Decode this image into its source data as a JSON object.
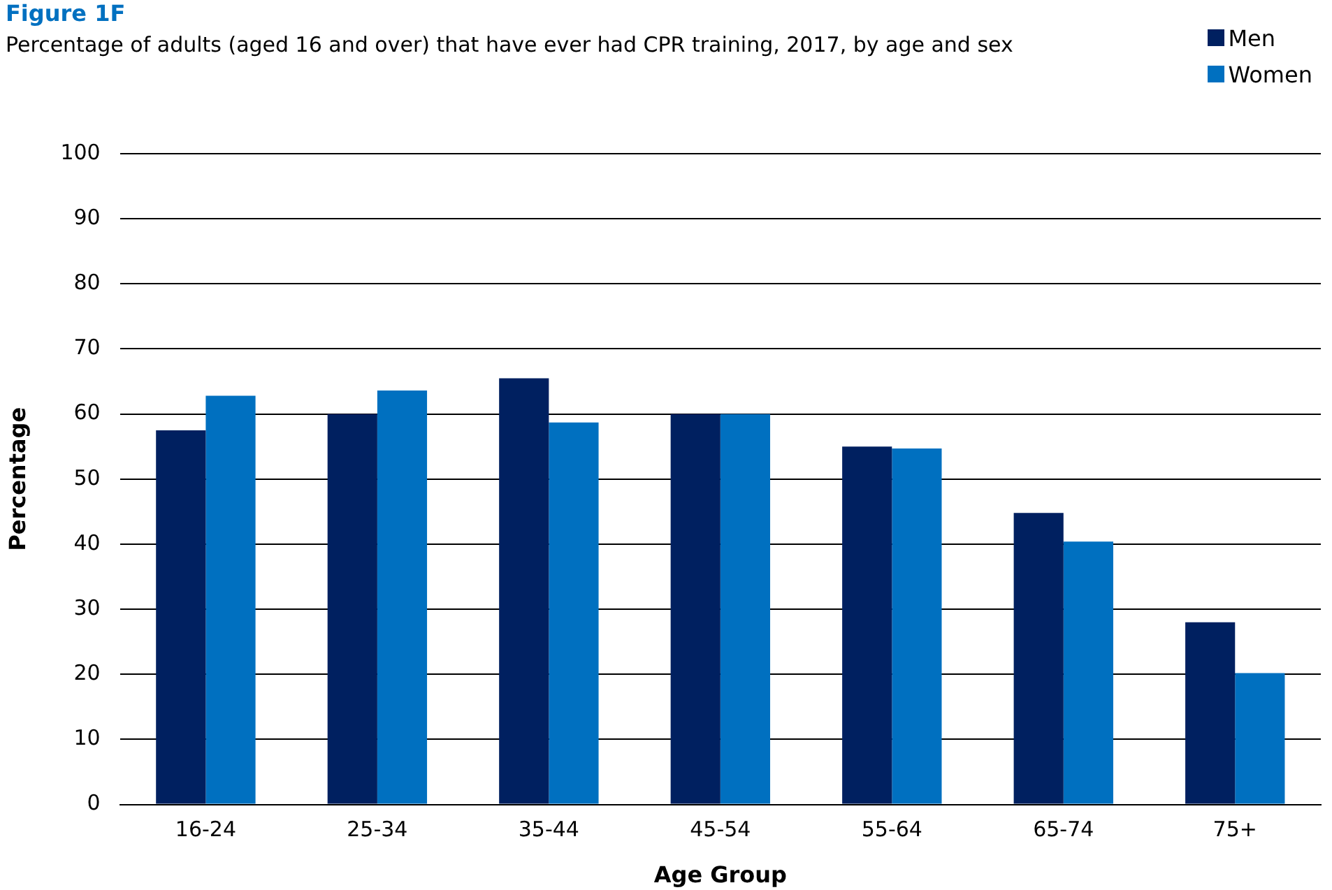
{
  "chart_data": {
    "type": "bar",
    "title": "Figure 1F",
    "subtitle": "Percentage of adults (aged 16 and over) that have ever had CPR training, 2017, by age and sex",
    "xlabel": "Age Group",
    "ylabel": "Percentage",
    "categories": [
      "16-24",
      "25-34",
      "35-44",
      "45-54",
      "55-64",
      "65-74",
      "75+"
    ],
    "series": [
      {
        "name": "Men",
        "color": "#002060",
        "values": [
          57.5,
          60,
          65.5,
          60,
          55,
          44.8,
          28
        ]
      },
      {
        "name": "Women",
        "color": "#0070c0",
        "values": [
          62.8,
          63.6,
          58.7,
          60,
          54.7,
          40.4,
          20.2
        ]
      }
    ],
    "ylim": [
      0,
      100
    ],
    "yticks": [
      0,
      10,
      20,
      30,
      40,
      50,
      60,
      70,
      80,
      90,
      100
    ],
    "grid": "y",
    "legend": "top right"
  }
}
